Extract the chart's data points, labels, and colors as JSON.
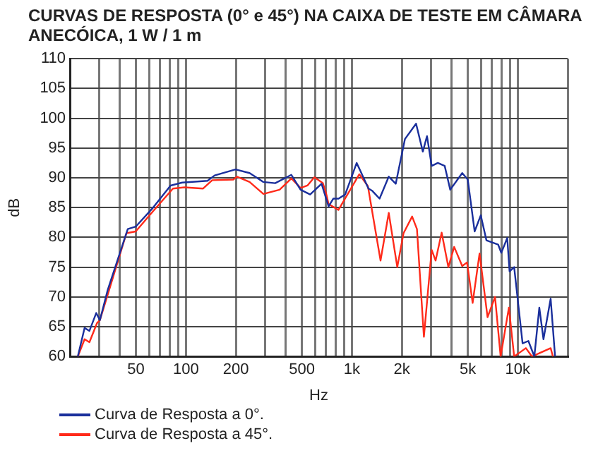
{
  "chart_data": {
    "type": "line",
    "title": "CURVAS DE RESPOSTA (0° e 45°) NA CAIXA DE TESTE EM CÂMARA ANECÓICA, 1 W / 1 m",
    "xlabel": "Hz",
    "ylabel": "dB",
    "log": "x",
    "xlim": [
      20,
      20000
    ],
    "ylim": [
      60,
      110
    ],
    "xticks": [
      {
        "value": 20,
        "label": null
      },
      {
        "value": 30,
        "label": null
      },
      {
        "value": 40,
        "label": null
      },
      50,
      {
        "value": 60,
        "label": null
      },
      {
        "value": 70,
        "label": null
      },
      {
        "value": 80,
        "label": null
      },
      {
        "value": 90,
        "label": null
      },
      100,
      200,
      {
        "value": 300,
        "label": null
      },
      {
        "value": 400,
        "label": null
      },
      500,
      {
        "value": 600,
        "label": null
      },
      {
        "value": 700,
        "label": null
      },
      {
        "value": 800,
        "label": null
      },
      {
        "value": 900,
        "label": null
      },
      {
        "value": 1000,
        "label": "1k"
      },
      {
        "value": 2000,
        "label": "2k"
      },
      {
        "value": 3000,
        "label": null
      },
      {
        "value": 4000,
        "label": null
      },
      {
        "value": 5000,
        "label": "5k"
      },
      {
        "value": 6000,
        "label": null
      },
      {
        "value": 7000,
        "label": null
      },
      {
        "value": 8000,
        "label": null
      },
      {
        "value": 9000,
        "label": null
      },
      {
        "value": 10000,
        "label": "10k"
      },
      {
        "value": 20000,
        "label": null
      }
    ],
    "yticks": [
      60,
      65,
      70,
      75,
      80,
      85,
      90,
      95,
      100,
      105,
      110
    ],
    "grid": true,
    "legend": "bottom left",
    "marker": "none",
    "line_style": "solid",
    "series": [
      {
        "name": "Curva de Resposta a 0°.",
        "color": "#1a2f9c",
        "x": [
          22.3,
          24.5,
          26.2,
          28.8,
          30.3,
          33.8,
          44.6,
          49.8,
          62.5,
          80.8,
          95,
          135,
          149,
          199,
          242,
          293,
          345,
          432,
          491,
          561,
          657,
          724,
          773,
          832,
          912,
          1070,
          1260,
          1330,
          1470,
          1670,
          1840,
          2090,
          2440,
          2680,
          2840,
          3030,
          3300,
          3630,
          3920,
          4630,
          5000,
          5500,
          5990,
          6480,
          7620,
          7960,
          8650,
          8930,
          9520,
          10700,
          11600,
          12600,
          13500,
          14300,
          15800,
          16800
        ],
        "values": [
          60,
          64.8,
          64.3,
          67.3,
          66.1,
          71.2,
          81.4,
          81.8,
          84.8,
          88.7,
          89.2,
          89.5,
          90.4,
          91.4,
          90.8,
          89.3,
          89.1,
          90.5,
          88,
          87.2,
          89,
          85.2,
          86.5,
          86.5,
          87.2,
          92.5,
          88.2,
          87.8,
          86.5,
          90.2,
          89,
          96.5,
          99.1,
          94.4,
          97,
          92,
          92.5,
          92,
          88,
          90.8,
          89.7,
          81,
          83.7,
          79.5,
          78.8,
          77.4,
          79.9,
          74.3,
          75,
          62.2,
          62.6,
          60,
          68.2,
          62.9,
          69.7,
          60
        ]
      },
      {
        "name": "Curva de Resposta a 45°.",
        "color": "#ff2a1a",
        "x": [
          22.3,
          24.5,
          26.2,
          29.1,
          30.3,
          33.8,
          43.8,
          49.8,
          62.5,
          83.5,
          98,
          127,
          144,
          193,
          203,
          242,
          293,
          367,
          432,
          491,
          540,
          595,
          669,
          700,
          724,
          830,
          1110,
          1250,
          1490,
          1670,
          1880,
          2050,
          2310,
          2470,
          2720,
          3030,
          3200,
          3480,
          3820,
          4140,
          4630,
          4950,
          5350,
          5890,
          6580,
          7300,
          7890,
          8850,
          9520,
          11200,
          12200,
          15800,
          16300
        ],
        "values": [
          60,
          62.9,
          62.4,
          65.6,
          66.1,
          70.4,
          80.7,
          81,
          84.2,
          88.2,
          88.4,
          88.2,
          89.6,
          89.7,
          90.2,
          89.3,
          87.3,
          88,
          89.9,
          88.3,
          88.7,
          90.1,
          89.1,
          87.4,
          85.6,
          84.6,
          90.6,
          88.6,
          76.1,
          84.1,
          75,
          80.7,
          83.5,
          81.4,
          63.3,
          77.9,
          76.1,
          80.8,
          75,
          78.4,
          75.2,
          75.8,
          69,
          77.3,
          66.6,
          70,
          60,
          68.2,
          60,
          61.4,
          60,
          61.4,
          60
        ]
      }
    ]
  }
}
